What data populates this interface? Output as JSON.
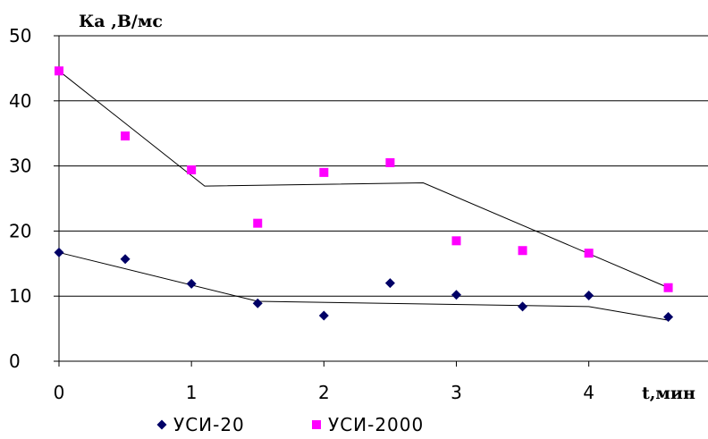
{
  "chart_data": {
    "type": "scatter",
    "ylabel": "Ка ,В/мс",
    "xlabel": "t,мин",
    "xlim": [
      0,
      4.9
    ],
    "ylim": [
      0,
      50
    ],
    "x_ticks": [
      "0",
      "1",
      "2",
      "3",
      "4"
    ],
    "y_ticks": [
      "0",
      "10",
      "20",
      "30",
      "40",
      "50"
    ],
    "grid": "horizontal",
    "legend_position": "bottom",
    "series": [
      {
        "name": "УСИ-20",
        "color": "#000066",
        "marker": "diamond",
        "x": [
          0,
          0.5,
          1,
          1.5,
          2,
          2.5,
          3,
          3.5,
          4,
          4.6
        ],
        "y": [
          16.7,
          15.7,
          11.9,
          8.9,
          7.0,
          12.0,
          10.2,
          8.4,
          10.1,
          6.8
        ],
        "trend_x": [
          0,
          1.5,
          4.0,
          4.6
        ],
        "trend_y": [
          16.7,
          9.2,
          8.4,
          6.3
        ]
      },
      {
        "name": "УСИ-2000",
        "color": "#ff00ff",
        "marker": "square",
        "x": [
          0,
          0.5,
          1,
          1.5,
          2,
          2.5,
          3,
          3.5,
          4,
          4.6
        ],
        "y": [
          44.6,
          34.6,
          29.4,
          21.2,
          29.0,
          30.5,
          18.5,
          17.0,
          16.6,
          11.3
        ],
        "trend_x": [
          0,
          1.1,
          2.75,
          4.6
        ],
        "trend_y": [
          44.6,
          26.9,
          27.4,
          11.3
        ]
      }
    ]
  }
}
